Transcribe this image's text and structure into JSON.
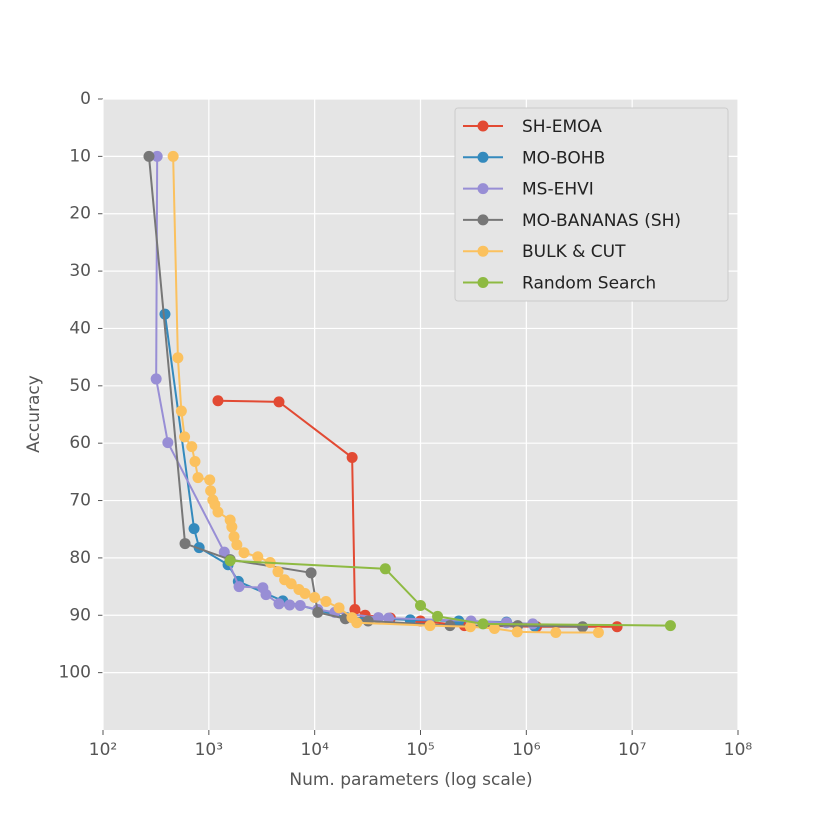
{
  "chart_data": {
    "type": "line",
    "x_label": "Num. parameters (log scale)",
    "y_label": "Accuracy",
    "xscale": "log",
    "xlim": [
      100,
      100000000
    ],
    "xticks": [
      {
        "value": 100,
        "label": "10²"
      },
      {
        "value": 1000,
        "label": "10³"
      },
      {
        "value": 10000,
        "label": "10⁴"
      },
      {
        "value": 100000,
        "label": "10⁵"
      },
      {
        "value": 1000000,
        "label": "10⁶"
      },
      {
        "value": 10000000,
        "label": "10⁷"
      },
      {
        "value": 100000000,
        "label": "10⁸"
      }
    ],
    "ylim": [
      0,
      110
    ],
    "y_inverted": true,
    "yticks": [
      0,
      10,
      20,
      30,
      40,
      50,
      60,
      70,
      80,
      90,
      100
    ],
    "grid": true,
    "legend": "upper right",
    "series": [
      {
        "name": "SH-EMOA",
        "color": "#E24A33",
        "x": [
          1220,
          4600,
          22600,
          24000,
          30000,
          52000,
          100000,
          260000,
          1250000,
          7200000
        ],
        "values": [
          52.6,
          52.8,
          62.5,
          89,
          90,
          90.5,
          91,
          91.8,
          92,
          92
        ]
      },
      {
        "name": "MO-BOHB",
        "color": "#348ABD",
        "x": [
          385,
          725,
          810,
          1520,
          1900,
          5000,
          20000,
          80000,
          230000,
          650000,
          1200000
        ],
        "values": [
          37.5,
          74.9,
          78.2,
          81.2,
          84.1,
          87.5,
          90.4,
          90.8,
          91,
          91.2,
          91.9
        ]
      },
      {
        "name": "MS-EHVI",
        "color": "#988ED5",
        "x": [
          325,
          318,
          410,
          1400,
          1930,
          3240,
          3470,
          4600,
          5800,
          7300,
          10700,
          15500,
          40000,
          50000,
          300000,
          650000,
          1150000
        ],
        "values": [
          10,
          48.8,
          59.9,
          79,
          85,
          85.2,
          86.4,
          88,
          88.2,
          88.3,
          89,
          89.5,
          90.4,
          90.5,
          91,
          91.3,
          91.5
        ]
      },
      {
        "name": "MO-BANANAS (SH)",
        "color": "#777777",
        "x": [
          272,
          596,
          1590,
          9250,
          10700,
          19500,
          32000,
          190000,
          830000,
          3400000
        ],
        "values": [
          10,
          77.5,
          80.3,
          82.6,
          89.5,
          90.6,
          91,
          91.8,
          91.8,
          92
        ]
      },
      {
        "name": "BULK & CUT",
        "color": "#FBC15E",
        "x": [
          460,
          510,
          550,
          590,
          690,
          740,
          790,
          1020,
          1040,
          1090,
          1140,
          1220,
          1590,
          1650,
          1730,
          1840,
          2150,
          2900,
          3800,
          4500,
          5200,
          6000,
          7100,
          8100,
          10000,
          12800,
          17000,
          22500,
          25000,
          123000,
          296000,
          500000,
          820000,
          1900000,
          4800000
        ],
        "values": [
          10,
          45.1,
          54.4,
          58.9,
          60.6,
          63.2,
          66,
          66.4,
          68.3,
          69.9,
          70.7,
          72,
          73.4,
          74.6,
          76.3,
          77.7,
          79.1,
          79.8,
          80.8,
          82.4,
          83.8,
          84.5,
          85.5,
          86.2,
          86.9,
          87.6,
          88.7,
          90.4,
          91.3,
          91.8,
          92,
          92.3,
          92.9,
          93,
          93
        ]
      },
      {
        "name": "Random Search",
        "color": "#8EBA42",
        "x": [
          1590,
          46500,
          100000,
          145000,
          390000,
          23000000
        ],
        "values": [
          80.5,
          81.9,
          88.3,
          90.2,
          91.5,
          91.8
        ]
      }
    ]
  }
}
